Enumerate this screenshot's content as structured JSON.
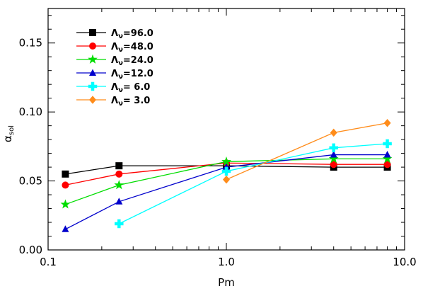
{
  "chart_data": {
    "type": "line",
    "xlabel": "Pm",
    "ylabel_main": "α",
    "ylabel_sub": "sol",
    "xscale": "log",
    "xlim": [
      0.1,
      10.0
    ],
    "ylim": [
      0.0,
      0.175
    ],
    "xticks": [
      0.1,
      1.0,
      10.0
    ],
    "xtick_labels": [
      "0.1",
      "1.0",
      "10.0"
    ],
    "yticks": [
      0.0,
      0.05,
      0.1,
      0.15
    ],
    "ytick_labels": [
      "0.00",
      "0.05",
      "0.10",
      "0.15"
    ],
    "legend_position": "top-left",
    "grid": false,
    "series": [
      {
        "name": "Λᵥ=96.0",
        "label_prefix": "Λ",
        "label_sub": "ν",
        "label_value": "=96.0",
        "color": "#000000",
        "marker": "square",
        "x": [
          0.125,
          0.25,
          1.0,
          4.0,
          8.0
        ],
        "y": [
          0.055,
          0.061,
          0.061,
          0.06,
          0.06
        ]
      },
      {
        "name": "Λᵥ=48.0",
        "label_prefix": "Λ",
        "label_sub": "ν",
        "label_value": "=48.0",
        "color": "#ff0000",
        "marker": "circle",
        "x": [
          0.125,
          0.25,
          1.0,
          4.0,
          8.0
        ],
        "y": [
          0.047,
          0.055,
          0.063,
          0.062,
          0.062
        ]
      },
      {
        "name": "Λᵥ=24.0",
        "label_prefix": "Λ",
        "label_sub": "ν",
        "label_value": "=24.0",
        "color": "#00dd00",
        "marker": "star",
        "x": [
          0.125,
          0.25,
          1.0,
          4.0,
          8.0
        ],
        "y": [
          0.033,
          0.047,
          0.064,
          0.066,
          0.066
        ]
      },
      {
        "name": "Λᵥ=12.0",
        "label_prefix": "Λ",
        "label_sub": "ν",
        "label_value": "=12.0",
        "color": "#0000cc",
        "marker": "triangle",
        "x": [
          0.125,
          0.25,
          1.0,
          4.0,
          8.0
        ],
        "y": [
          0.015,
          0.035,
          0.06,
          0.069,
          0.069
        ]
      },
      {
        "name": "Λᵥ= 6.0",
        "label_prefix": "Λ",
        "label_sub": "ν",
        "label_value": "= 6.0",
        "color": "#00ffff",
        "marker": "plus",
        "x": [
          0.25,
          1.0,
          4.0,
          8.0
        ],
        "y": [
          0.019,
          0.057,
          0.074,
          0.077
        ]
      },
      {
        "name": "Λᵥ= 3.0",
        "label_prefix": "Λ",
        "label_sub": "ν",
        "label_value": "= 3.0",
        "color": "#ff8c1a",
        "marker": "diamond",
        "x": [
          1.0,
          4.0,
          8.0
        ],
        "y": [
          0.051,
          0.085,
          0.092
        ]
      }
    ]
  }
}
